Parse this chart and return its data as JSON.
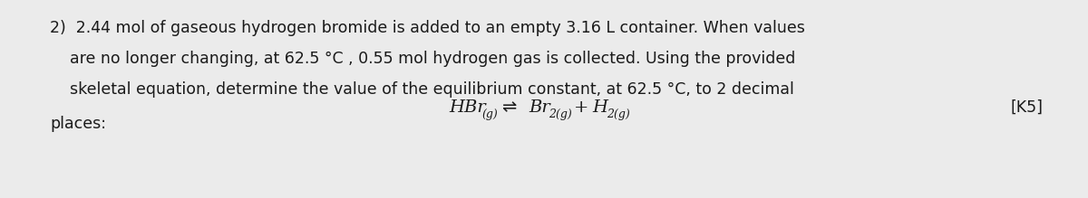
{
  "background_color": "#ebebeb",
  "text_color": "#1a1a1a",
  "figsize": [
    12.0,
    2.19
  ],
  "dpi": 100,
  "line1": "2)  2.44 mol of gaseous hydrogen bromide is added to an empty 3.16 L container. When values",
  "line2": "    are no longer changing, at 62.5 °C , 0.55 mol hydrogen gas is collected. Using the provided",
  "line3": "    skeletal equation, determine the value of the equilibrium constant, at 62.5 °C, to 2 decimal",
  "line4_left": "places:",
  "line4_right": "[K5]",
  "font_main": 12.5,
  "font_equation_main": 14,
  "font_equation_sub": 9
}
